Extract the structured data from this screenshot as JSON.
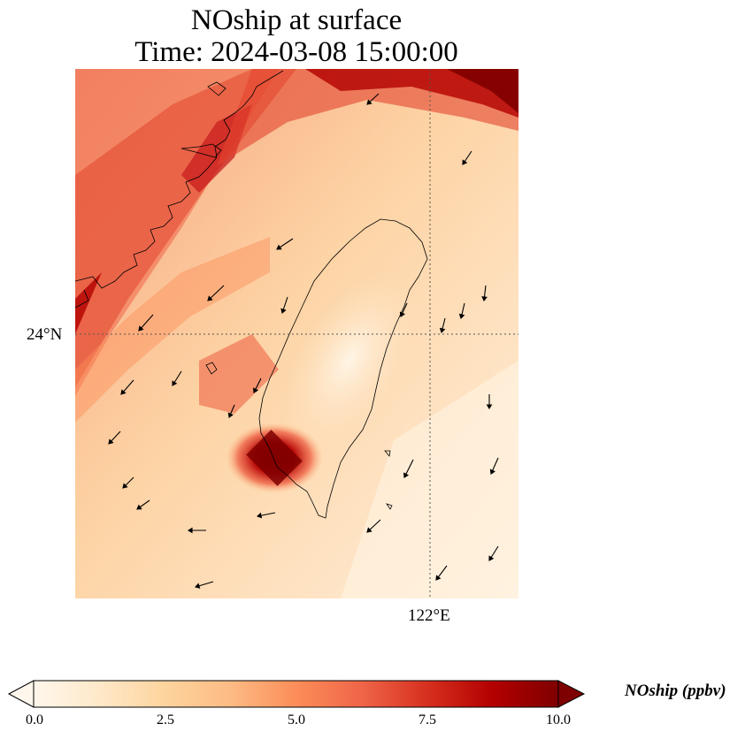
{
  "title": {
    "line1": "NOship at surface",
    "line2": "Time: 2024-03-08 15:00:00"
  },
  "map": {
    "variable": "NOship",
    "level": "surface",
    "lat_label": "24°N",
    "lon_label": "122°E",
    "colormap": "OrRd",
    "colors": {
      "low": "#fff7ec",
      "mid": "#fc8d59",
      "high": "#7f0000",
      "coast": "#000000",
      "grid": "#555555"
    }
  },
  "colorbar": {
    "label": "NOship (ppbv)",
    "min": 0.0,
    "max": 10.0,
    "extend": "both",
    "ticks": [
      "0.0",
      "2.5",
      "5.0",
      "7.5",
      "10.0"
    ]
  }
}
